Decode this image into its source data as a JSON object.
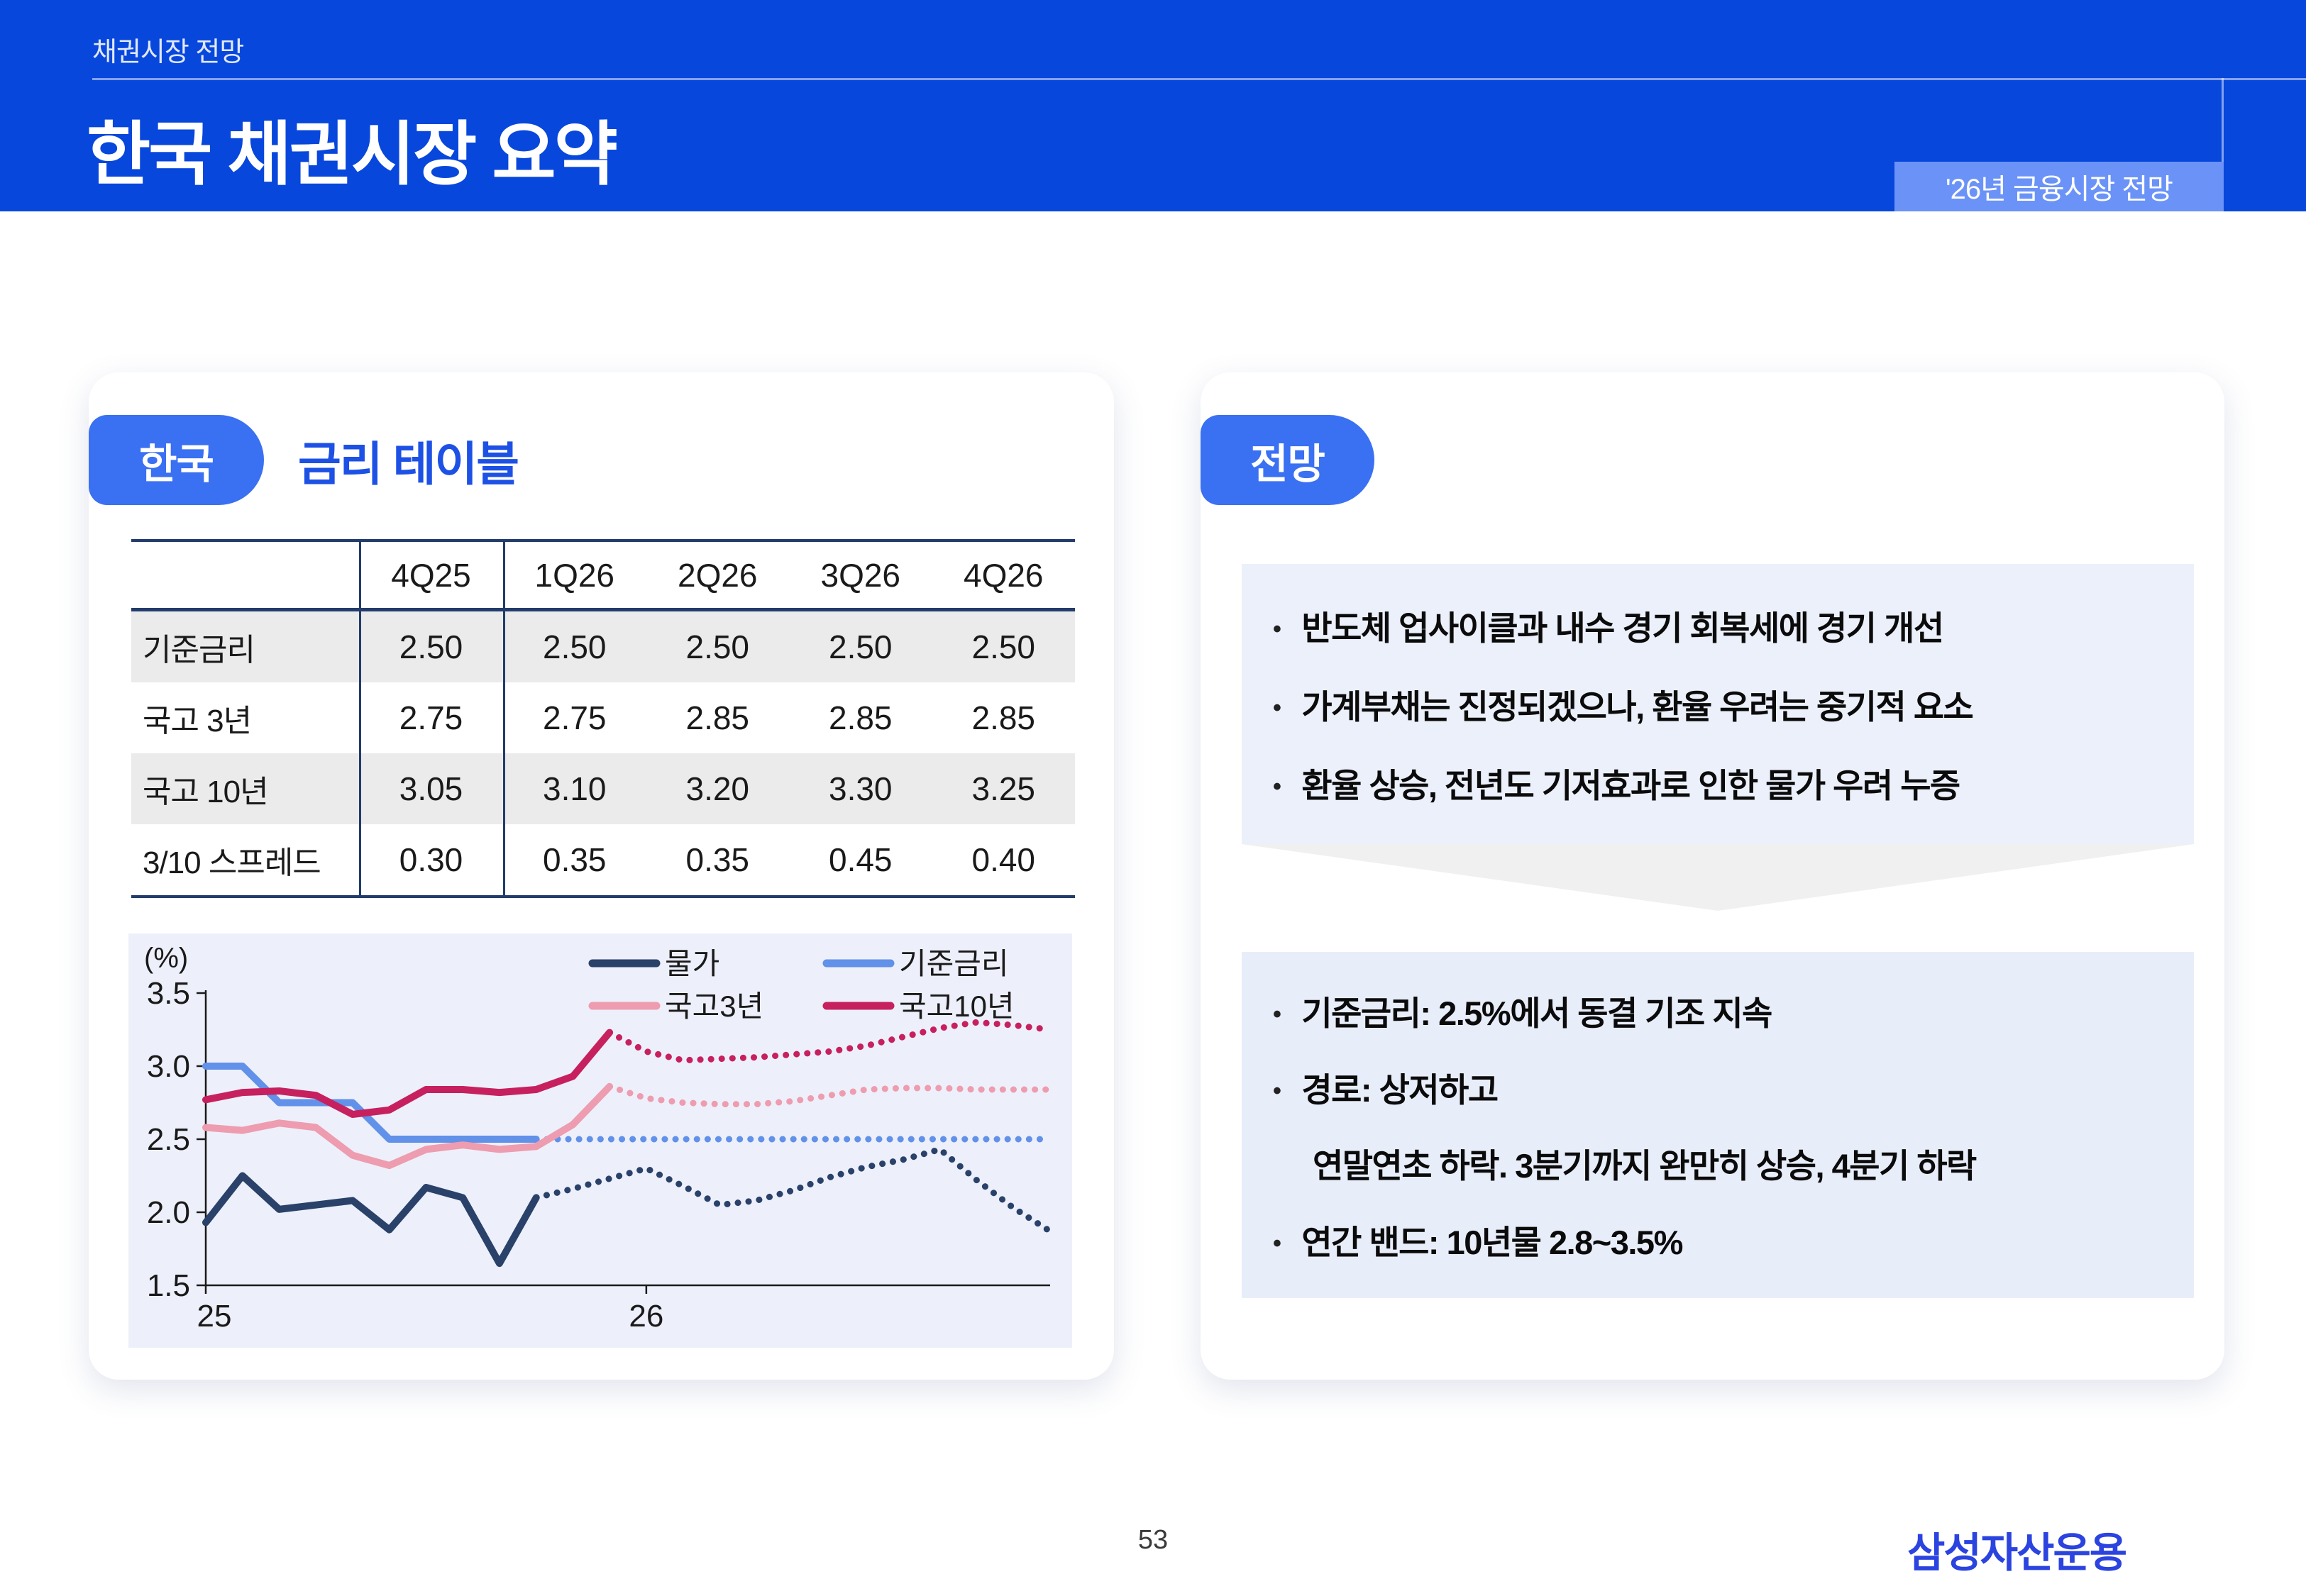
{
  "header": {
    "eyebrow": "채권시장 전망",
    "title": "한국 채권시장 요약",
    "corner_badge": "'26년 금융시장 전망"
  },
  "left_card": {
    "badge": "한국",
    "title": "금리 테이블",
    "table": {
      "columns": [
        "4Q25",
        "1Q26",
        "2Q26",
        "3Q26",
        "4Q26"
      ],
      "rows": [
        {
          "label": "기준금리",
          "values": [
            "2.50",
            "2.50",
            "2.50",
            "2.50",
            "2.50"
          ]
        },
        {
          "label": "국고 3년",
          "values": [
            "2.75",
            "2.75",
            "2.85",
            "2.85",
            "2.85"
          ]
        },
        {
          "label": "국고 10년",
          "values": [
            "3.05",
            "3.10",
            "3.20",
            "3.30",
            "3.25"
          ]
        },
        {
          "label": "3/10 스프레드",
          "values": [
            "0.30",
            "0.35",
            "0.35",
            "0.45",
            "0.40"
          ]
        }
      ]
    }
  },
  "right_card": {
    "badge": "전망",
    "outlook_bullets": [
      "반도체 업사이클과 내수 경기 회복세에 경기 개선",
      "가계부채는 진정되겠으나, 환율 우려는 중기적 요소",
      "환율 상승, 전년도 기저효과로 인한 물가 우려 누증"
    ],
    "forecast_bullets": [
      "기준금리: 2.5%에서 동결 기조 지속",
      "경로: 상저하고",
      "연간 밴드: 10년물 2.8~3.5%"
    ],
    "forecast_continuation": "연말연초 하락. 3분기까지 완만히 상승, 4분기 하락"
  },
  "footer": {
    "page_number": "53",
    "logo": "삼성자산운용"
  },
  "colors": {
    "header_blue": "#0847DC",
    "badge_blue": "#3A70F2",
    "corner_badge_blue": "#6B93F7",
    "title_blue": "#1D51E5",
    "table_border_navy": "#223C6C",
    "table_stripe_gray": "#EBEBEB",
    "chart_background": "#EDF0FA",
    "outlook_box": "#ECF0FB",
    "forecast_box": "#E8EDFA",
    "arrow_gray": "#F0F0F1",
    "logo_blue": "#2B43DF"
  },
  "chart_data": {
    "type": "line",
    "unit_label": "(%)",
    "ylim": [
      1.5,
      3.5
    ],
    "yticks": [
      3.5,
      3.0,
      2.5,
      2.0,
      1.5
    ],
    "xtick_labels": [
      "25",
      "26"
    ],
    "x26_index": 12,
    "grid": false,
    "legend_position": "top-right",
    "note": "solid = actual (year 25), dotted = forecast (year 26); 24 monthly points Jan-25 to Dec-26",
    "series": [
      {
        "name": "물가",
        "color": "#2A4169",
        "solid_until_index": 9,
        "values": [
          1.93,
          2.25,
          2.02,
          2.05,
          2.08,
          1.88,
          2.17,
          2.1,
          1.65,
          2.1,
          2.16,
          2.23,
          2.3,
          2.18,
          2.05,
          2.08,
          2.15,
          2.24,
          2.31,
          2.36,
          2.43,
          2.22,
          2.03,
          1.87
        ]
      },
      {
        "name": "기준금리",
        "color": "#6191E8",
        "solid_until_index": 9,
        "values": [
          3.0,
          3.0,
          2.75,
          2.75,
          2.75,
          2.5,
          2.5,
          2.5,
          2.5,
          2.5,
          2.5,
          2.5,
          2.5,
          2.5,
          2.5,
          2.5,
          2.5,
          2.5,
          2.5,
          2.5,
          2.5,
          2.5,
          2.5,
          2.5
        ]
      },
      {
        "name": "국고3년",
        "color": "#EE9CAF",
        "solid_until_index": 11,
        "values": [
          2.58,
          2.56,
          2.61,
          2.58,
          2.39,
          2.32,
          2.43,
          2.46,
          2.43,
          2.45,
          2.6,
          2.86,
          2.78,
          2.75,
          2.74,
          2.74,
          2.76,
          2.8,
          2.84,
          2.85,
          2.85,
          2.84,
          2.84,
          2.84
        ]
      },
      {
        "name": "국고10년",
        "color": "#C7205F",
        "solid_until_index": 11,
        "values": [
          2.77,
          2.82,
          2.83,
          2.8,
          2.67,
          2.7,
          2.84,
          2.84,
          2.82,
          2.84,
          2.93,
          3.23,
          3.1,
          3.04,
          3.05,
          3.06,
          3.08,
          3.1,
          3.14,
          3.2,
          3.26,
          3.3,
          3.28,
          3.25
        ]
      }
    ]
  }
}
